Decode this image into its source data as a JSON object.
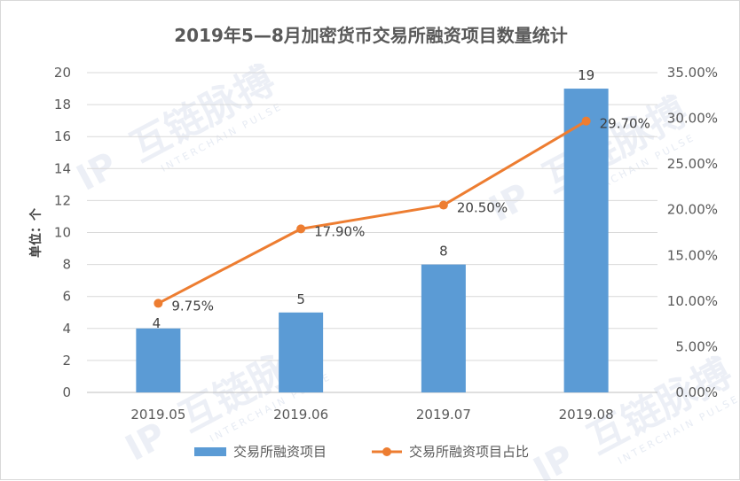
{
  "chart_data": {
    "type": "bar",
    "title": "2019年5—8月加密货币交易所融资项目数量统计",
    "ylabel": "单位：个",
    "categories": [
      "2019.05",
      "2019.06",
      "2019.07",
      "2019.08"
    ],
    "ylim": [
      0,
      20
    ],
    "yticks": [
      "0",
      "2",
      "4",
      "6",
      "8",
      "10",
      "12",
      "14",
      "16",
      "18",
      "20"
    ],
    "y2lim": [
      0,
      35
    ],
    "y2ticks": [
      "0.00%",
      "5.00%",
      "10.00%",
      "15.00%",
      "20.00%",
      "25.00%",
      "30.00%",
      "35.00%"
    ],
    "grid": true,
    "legend_position": "bottom",
    "series": [
      {
        "name": "交易所融资项目",
        "type": "bar",
        "axis": "left",
        "color": "#5b9bd5",
        "values": [
          4,
          5,
          8,
          19
        ],
        "labels": [
          "4",
          "5",
          "8",
          "19"
        ]
      },
      {
        "name": "交易所融资项目占比",
        "type": "line",
        "axis": "right",
        "color": "#ed7d31",
        "values": [
          9.75,
          17.9,
          20.5,
          29.7
        ],
        "labels": [
          "9.75%",
          "17.90%",
          "20.50%",
          "29.70%"
        ]
      }
    ]
  },
  "watermark": {
    "brand": "互链脉搏",
    "sub": "INTERCHAIN PULSE"
  }
}
